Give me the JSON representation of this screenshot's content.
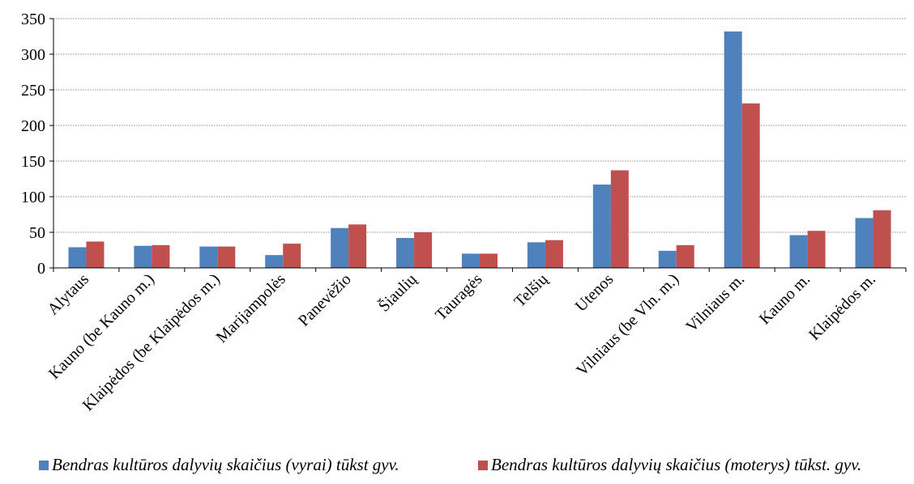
{
  "chart_data": {
    "type": "bar",
    "categories": [
      "Alytaus",
      "Kauno (be Kauno m.)",
      "Klaipėdos (be Klaipėdos m.)",
      "Marijampolės",
      "Panevėžio",
      "Šiaulių",
      "Tauragės",
      "Telšių",
      "Utenos",
      "Vilniaus (be Vln. m.)",
      "Vilniaus m.",
      "Kauno m.",
      "Klaipėdos m."
    ],
    "series": [
      {
        "name": "Bendras kultūros dalyvių skaičius (vyrai) tūkst gyv.",
        "color": "#4F81BD",
        "values": [
          29,
          31,
          30,
          18,
          56,
          42,
          20,
          36,
          117,
          24,
          332,
          46,
          70
        ]
      },
      {
        "name": "Bendras kultūros dalyvių skaičius (moterys) tūkst. gyv.",
        "color": "#C0504D",
        "values": [
          37,
          32,
          30,
          34,
          61,
          50,
          20,
          39,
          137,
          32,
          231,
          52,
          81
        ]
      }
    ],
    "yticks": [
      0,
      50,
      100,
      150,
      200,
      250,
      300,
      350
    ],
    "ylim": [
      0,
      350
    ],
    "grid": true,
    "legend_position": "bottom"
  }
}
